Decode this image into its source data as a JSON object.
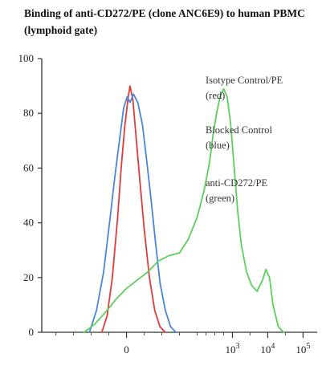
{
  "chart_data": {
    "type": "line",
    "title": "Binding of anti-CD272/PE (clone ANC6E9) to human PBMC (lymphoid gate)",
    "ylim": [
      0,
      100
    ],
    "y_ticks": [
      "0",
      "20",
      "40",
      "60",
      "80",
      "100"
    ],
    "x_ticks": [
      {
        "pos": 0,
        "base": "0",
        "exp": ""
      },
      {
        "pos": 3,
        "base": "10",
        "exp": "3"
      },
      {
        "pos": 4,
        "base": "10",
        "exp": "4"
      },
      {
        "pos": 5,
        "base": "10",
        "exp": "5"
      }
    ],
    "xlim": [
      -2.4,
      5.4
    ],
    "x_minor": [
      -2.0,
      -1.5,
      -1.0,
      -0.5,
      0.5,
      1.0,
      1.5,
      2.0,
      2.25,
      2.5,
      2.75,
      3.5,
      4.5
    ],
    "legend": [
      {
        "lines": [
          "Isotype Control/PE",
          "(red)"
        ]
      },
      {
        "lines": [
          "Blocked Control",
          "(blue)"
        ]
      },
      {
        "lines": [
          "anti-CD272/PE",
          "(green)"
        ]
      }
    ],
    "series": [
      {
        "color": "#e03b3b",
        "x": [
          -0.7,
          -0.55,
          -0.4,
          -0.25,
          -0.15,
          -0.05,
          0.05,
          0.1,
          0.18,
          0.26,
          0.36,
          0.5,
          0.65,
          0.8,
          0.95,
          1.1
        ],
        "y": [
          0,
          6,
          20,
          42,
          60,
          75,
          86,
          90,
          85,
          73,
          58,
          38,
          20,
          8,
          2,
          0
        ]
      },
      {
        "color": "#4a86d8",
        "x": [
          -1.05,
          -0.85,
          -0.65,
          -0.48,
          -0.32,
          -0.18,
          -0.08,
          0.02,
          0.1,
          0.2,
          0.32,
          0.45,
          0.58,
          0.7,
          0.82,
          0.95,
          1.1,
          1.25,
          1.4
        ],
        "y": [
          0,
          8,
          22,
          40,
          58,
          72,
          82,
          86,
          84,
          87,
          84,
          76,
          62,
          48,
          33,
          18,
          8,
          2,
          0
        ]
      },
      {
        "color": "#5ccf5c",
        "x": [
          -1.2,
          -0.9,
          -0.55,
          -0.3,
          0.0,
          0.3,
          0.6,
          0.9,
          1.2,
          1.5,
          1.75,
          2.0,
          2.2,
          2.35,
          2.45,
          2.55,
          2.65,
          2.75,
          2.85,
          2.95,
          3.05,
          3.15,
          3.25,
          3.4,
          3.55,
          3.7,
          3.85,
          3.95,
          4.05,
          4.15,
          4.3,
          4.45
        ],
        "y": [
          0,
          3,
          8,
          12,
          16,
          19,
          22,
          26,
          28,
          29,
          34,
          42,
          52,
          62,
          72,
          80,
          86,
          89,
          86,
          76,
          60,
          44,
          32,
          22,
          17,
          15,
          19,
          23,
          20,
          10,
          2,
          0
        ]
      }
    ]
  }
}
